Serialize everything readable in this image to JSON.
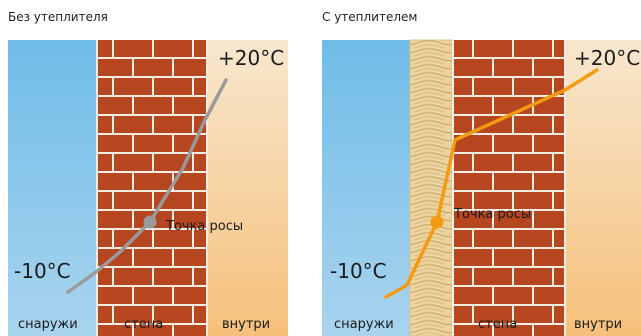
{
  "panels": [
    {
      "title": "Без утеплителя",
      "temp_inside": "+20°C",
      "temp_outside": "-10°C",
      "dew_label": "Точка росы",
      "zones": {
        "outside": "снаружи",
        "wall": "стена",
        "inside": "внутри"
      },
      "line_color": "#9a9a9a"
    },
    {
      "title": "С утеплителем",
      "temp_inside": "+20°C",
      "temp_outside": "-10°C",
      "dew_label": "Точка росы",
      "zones": {
        "outside": "снаружи",
        "wall": "стена",
        "inside": "внутри"
      },
      "line_color": "#f39a11"
    }
  ],
  "colors": {
    "outside_top": "#6fbce8",
    "outside_bottom": "#a9d4ee",
    "brick": "#b5461f",
    "mortar": "#ffffff",
    "inside_top": "#f6e3c4",
    "inside_bottom": "#f6c27e",
    "insulation": "#e8c98a"
  }
}
